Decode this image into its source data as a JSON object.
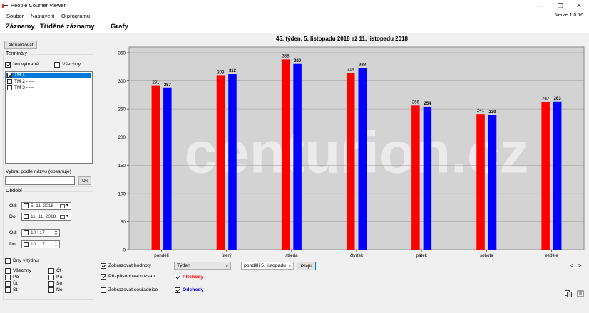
{
  "window": {
    "title": "People Counter Viewer",
    "minimize": "—",
    "restore": "❐",
    "close": "✕"
  },
  "menu": {
    "items": [
      "Soubor",
      "Nastavení",
      "O programu"
    ],
    "version": "Verze 1.0.16"
  },
  "tabs": [
    "Záznamy",
    "Tříděné záznamy",
    "Grafy"
  ],
  "sidebar": {
    "refresh_label": "Aktualizovat",
    "terminals": {
      "legend": "Terminály",
      "only_selected": "Jen vybrané",
      "only_selected_checked": true,
      "all": "Všechny",
      "all_checked": false,
      "items": [
        {
          "label": "TM 1 - ---",
          "checked": true,
          "selected": true
        },
        {
          "label": "TM 2 - ---",
          "checked": false,
          "selected": false
        },
        {
          "label": "TM 3 - ---",
          "checked": false,
          "selected": false
        }
      ],
      "filter_label": "Vybrat podle názvu (obsahuje)",
      "filter_value": "",
      "ok_label": "Ok"
    },
    "period": {
      "legend": "Období",
      "from_label": "Od:",
      "to_label": "Do:",
      "from_date": "5. 11. 2018",
      "to_date": "11. 11. 2018",
      "from_time": "10 : 17",
      "to_time": "10 : 17",
      "days_of_week_label": "Dny v týdnu",
      "days": [
        {
          "label": "Všechny"
        },
        {
          "label": "Čt"
        },
        {
          "label": "Po"
        },
        {
          "label": "Pá"
        },
        {
          "label": "Út"
        },
        {
          "label": "So"
        },
        {
          "label": "St"
        },
        {
          "label": "Ne"
        }
      ]
    }
  },
  "chart_data": {
    "type": "bar",
    "title": "45. týden,  5. listopadu 2018  až  11. listopadu 2018",
    "categories": [
      "pondělí",
      "úterý",
      "středa",
      "čtvrtek",
      "pátek",
      "sobota",
      "neděle"
    ],
    "series": [
      {
        "name": "Příchody",
        "color": "#ff0000",
        "values": [
          291,
          309,
          338,
          314,
          256,
          241,
          262
        ]
      },
      {
        "name": "Odchody",
        "color": "#0000ff",
        "values": [
          287,
          312,
          330,
          323,
          254,
          239,
          263
        ]
      }
    ],
    "ylim": [
      0,
      360
    ],
    "yticks": [
      0,
      50,
      100,
      150,
      200,
      250,
      300,
      350
    ],
    "grid": true,
    "plot_background": "#d3d3d3"
  },
  "watermark": "centurion.cz",
  "controls": {
    "show_values": "Zobrazovat hodnoty",
    "show_values_checked": true,
    "adjust_range": "Přizpůsobovat rozsah",
    "adjust_range_checked": true,
    "show_coords": "Zobrazovat souřadnice",
    "show_coords_checked": false,
    "period_combo": "Týden",
    "week_combo": "pondělí  5. listopadu",
    "go_label": "Přejít",
    "series_arrivals": "Příchody",
    "series_arrivals_checked": true,
    "series_departures": "Odchody",
    "series_departures_checked": true,
    "nav_prev": "<",
    "nav_next": ">"
  }
}
